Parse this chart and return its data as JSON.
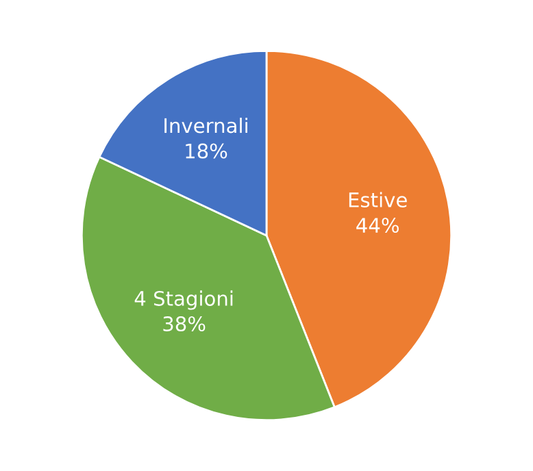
{
  "chart_data": {
    "type": "pie",
    "categories": [
      "Estive",
      "4 Stagioni",
      "Invernali"
    ],
    "values": [
      44,
      38,
      18
    ],
    "value_labels": [
      "44%",
      "38%",
      "18%"
    ],
    "colors": [
      "#ed7d31",
      "#70ad47",
      "#4472c4"
    ]
  }
}
